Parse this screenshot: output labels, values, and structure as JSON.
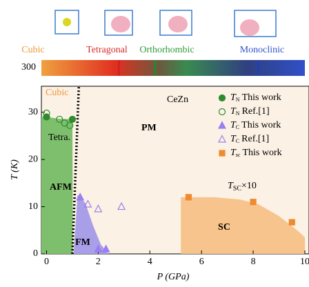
{
  "chart_data": {
    "type": "scatter",
    "compound": "CeZn",
    "phases": [
      {
        "name": "Cubic",
        "color": "#f0963a"
      },
      {
        "name": "Tetragonal",
        "color": "#d82a2a"
      },
      {
        "name": "Orthorhombic",
        "color": "#2e9a3a"
      },
      {
        "name": "Monoclinic",
        "color": "#2f55c8"
      }
    ],
    "colorbar": {
      "label": "300",
      "transitions": [
        {
          "value": 2.8,
          "color": "#d42020"
        },
        {
          "value": 4.2,
          "color": "#1e8a2e"
        },
        {
          "value": 8.2,
          "color": "#2040b0"
        }
      ]
    },
    "xlabel": "P (GPa)",
    "ylabel": "T (K)",
    "xlim": [
      -0.2,
      10
    ],
    "ylim": [
      0,
      35.5
    ],
    "xticks": [
      0,
      2,
      4,
      6,
      8,
      10
    ],
    "yticks": [
      0,
      10,
      20,
      30
    ],
    "regions": [
      {
        "label": "AFM",
        "color": "#7dbf6c",
        "x": [
          -0.2,
          -0.2,
          0,
          0.5,
          1,
          1.02
        ],
        "y": [
          0,
          29,
          29,
          28.6,
          28.5,
          0
        ]
      },
      {
        "label": "FM",
        "color": "#a99ee8",
        "x": [
          1.05,
          1.2,
          1.5,
          1.8,
          2.1,
          2.4
        ],
        "y": [
          0,
          12.5,
          10.8,
          6,
          2,
          0
        ]
      },
      {
        "label": "SC",
        "color": "#f6c48c",
        "x": [
          5.2,
          5.2,
          6.5,
          7.5,
          8.2,
          9,
          9.7,
          10,
          10
        ],
        "y": [
          0,
          12,
          12,
          11.5,
          10.5,
          8,
          5,
          3.5,
          0
        ]
      }
    ],
    "boundary": {
      "x": [
        1.0,
        1.25
      ],
      "y": [
        0,
        35.5
      ]
    },
    "annotations": [
      "Cubic",
      "Tetra.",
      "PM"
    ],
    "scaled_label": {
      "symbol": "T",
      "subscript": "SC",
      "suffix": "×10"
    },
    "series": [
      {
        "symbol": "T",
        "subscript": "N",
        "note": "This work",
        "marker": "circle",
        "filled": true,
        "color": "#2e8b2e",
        "x": [
          0,
          1
        ],
        "y": [
          29,
          28.5
        ]
      },
      {
        "symbol": "T",
        "subscript": "N",
        "note": "Ref.[1]",
        "marker": "circle",
        "filled": false,
        "color": "#2e8b2e",
        "x": [
          0,
          0.5,
          0.7,
          0.9
        ],
        "y": [
          29.8,
          28.5,
          27.7,
          27.2
        ]
      },
      {
        "symbol": "T",
        "subscript": "C",
        "note": "This work",
        "marker": "triangle",
        "filled": true,
        "color": "#9b7ff0",
        "x": [
          1.3,
          2.0,
          2.3
        ],
        "y": [
          12,
          1,
          1
        ]
      },
      {
        "symbol": "T",
        "subscript": "C",
        "note": "Ref.[1]",
        "marker": "triangle",
        "filled": false,
        "color": "#9b7ff0",
        "x": [
          1.6,
          2.0,
          2.9
        ],
        "y": [
          10.5,
          9.5,
          10
        ]
      },
      {
        "symbol": "T",
        "subscript": "sc",
        "note": "This work",
        "marker": "square",
        "filled": true,
        "color": "#f08a30",
        "x": [
          5.5,
          8,
          9.5
        ],
        "y": [
          12,
          11,
          6.7
        ]
      }
    ]
  }
}
